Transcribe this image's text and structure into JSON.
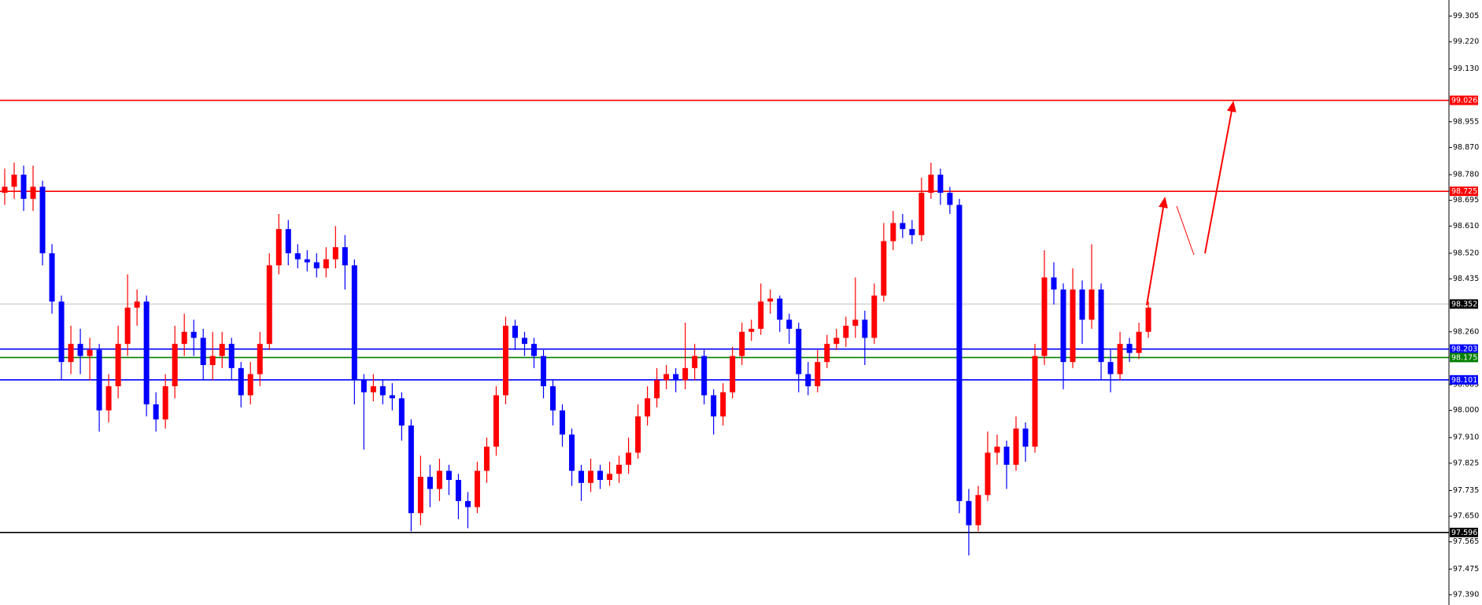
{
  "chart_data": {
    "type": "candlestick",
    "up_color": "#ff0000",
    "down_color": "#0000ff",
    "open": [
      98.72,
      98.74,
      98.78,
      98.7,
      98.74,
      98.52,
      98.36,
      98.16,
      98.22,
      98.18,
      98.2,
      98.0,
      98.08,
      98.22,
      98.34,
      98.36,
      98.02,
      97.97,
      98.08,
      98.22,
      98.26,
      98.24,
      98.15,
      98.18,
      98.22,
      98.14,
      98.05,
      98.12,
      98.22,
      98.48,
      98.6,
      98.52,
      98.5,
      98.49,
      98.47,
      98.5,
      98.54,
      98.48,
      98.1,
      98.06,
      98.08,
      98.05,
      98.04,
      97.95,
      97.66,
      97.78,
      97.74,
      97.8,
      97.77,
      97.7,
      97.68,
      97.8,
      97.88,
      98.05,
      98.28,
      98.24,
      98.22,
      98.18,
      98.08,
      98.0,
      97.92,
      97.8,
      97.76,
      97.8,
      97.77,
      97.79,
      97.82,
      97.86,
      97.98,
      98.04,
      98.1,
      98.12,
      98.1,
      98.14,
      98.18,
      98.05,
      97.98,
      98.06,
      98.18,
      98.26,
      98.27,
      98.36,
      98.37,
      98.3,
      98.27,
      98.12,
      98.08,
      98.16,
      98.22,
      98.24,
      98.28,
      98.3,
      98.24,
      98.38,
      98.56,
      98.62,
      98.6,
      98.58,
      98.72,
      98.78,
      98.72,
      98.68,
      97.7,
      97.62,
      97.72,
      97.86,
      97.88,
      97.82,
      97.94,
      97.88,
      98.18,
      98.44,
      98.4,
      98.16,
      98.4,
      98.3,
      98.4,
      98.16,
      98.12,
      98.22,
      98.19,
      98.26
    ],
    "high": [
      98.8,
      98.82,
      98.81,
      98.81,
      98.76,
      98.55,
      98.38,
      98.28,
      98.27,
      98.24,
      98.22,
      98.12,
      98.28,
      98.45,
      98.4,
      98.38,
      98.06,
      98.12,
      98.28,
      98.32,
      98.3,
      98.27,
      98.26,
      98.26,
      98.24,
      98.16,
      98.16,
      98.26,
      98.52,
      98.65,
      98.63,
      98.55,
      98.53,
      98.52,
      98.54,
      98.61,
      98.58,
      98.5,
      98.12,
      98.12,
      98.1,
      98.09,
      98.06,
      97.97,
      97.85,
      97.82,
      97.84,
      97.82,
      97.79,
      97.73,
      97.83,
      97.91,
      98.08,
      98.31,
      98.3,
      98.26,
      98.24,
      98.2,
      98.1,
      98.02,
      97.94,
      97.82,
      97.84,
      97.82,
      97.83,
      97.85,
      97.91,
      98.02,
      98.08,
      98.14,
      98.15,
      98.14,
      98.29,
      98.22,
      98.2,
      98.07,
      98.09,
      98.21,
      98.29,
      98.3,
      98.42,
      98.4,
      98.38,
      98.32,
      98.29,
      98.16,
      98.2,
      98.25,
      98.27,
      98.31,
      98.44,
      98.33,
      98.42,
      98.62,
      98.66,
      98.65,
      98.63,
      98.77,
      98.82,
      98.8,
      98.74,
      98.7,
      97.74,
      97.75,
      97.93,
      97.92,
      97.9,
      97.98,
      97.96,
      98.22,
      98.53,
      98.49,
      98.42,
      98.47,
      98.43,
      98.55,
      98.42,
      98.2,
      98.26,
      98.24,
      98.29,
      98.36
    ],
    "low": [
      98.68,
      98.7,
      98.66,
      98.66,
      98.48,
      98.32,
      98.1,
      98.12,
      98.12,
      98.1,
      97.93,
      97.96,
      98.04,
      98.18,
      98.28,
      97.98,
      97.93,
      97.94,
      98.04,
      98.18,
      98.18,
      98.1,
      98.1,
      98.14,
      98.1,
      98.01,
      98.02,
      98.08,
      98.2,
      98.45,
      98.48,
      98.47,
      98.46,
      98.44,
      98.44,
      98.47,
      98.4,
      98.02,
      97.87,
      98.03,
      98.02,
      98.0,
      97.9,
      97.6,
      97.62,
      97.68,
      97.7,
      97.72,
      97.64,
      97.61,
      97.66,
      97.76,
      97.85,
      98.02,
      98.2,
      98.18,
      98.14,
      98.04,
      97.95,
      97.88,
      97.75,
      97.7,
      97.73,
      97.74,
      97.75,
      97.76,
      97.79,
      97.84,
      97.95,
      98.01,
      98.07,
      98.06,
      98.07,
      98.1,
      98.02,
      97.92,
      97.95,
      98.04,
      98.15,
      98.23,
      98.25,
      98.32,
      98.26,
      98.22,
      98.06,
      98.05,
      98.06,
      98.14,
      98.2,
      98.21,
      98.24,
      98.15,
      98.22,
      98.36,
      98.53,
      98.57,
      98.55,
      98.56,
      98.7,
      98.68,
      98.65,
      97.66,
      97.52,
      97.6,
      97.7,
      97.82,
      97.74,
      97.8,
      97.83,
      97.86,
      98.15,
      98.35,
      98.07,
      98.14,
      98.22,
      98.27,
      98.1,
      98.06,
      98.1,
      98.16,
      98.17,
      98.24
    ],
    "close": [
      98.74,
      98.78,
      98.7,
      98.74,
      98.52,
      98.36,
      98.16,
      98.22,
      98.18,
      98.2,
      98.0,
      98.08,
      98.22,
      98.34,
      98.36,
      98.02,
      97.97,
      98.08,
      98.22,
      98.26,
      98.24,
      98.15,
      98.18,
      98.22,
      98.14,
      98.05,
      98.12,
      98.22,
      98.48,
      98.6,
      98.52,
      98.5,
      98.49,
      98.47,
      98.5,
      98.54,
      98.48,
      98.1,
      98.06,
      98.08,
      98.05,
      98.04,
      97.95,
      97.66,
      97.78,
      97.74,
      97.8,
      97.77,
      97.7,
      97.68,
      97.8,
      97.88,
      98.05,
      98.28,
      98.24,
      98.22,
      98.18,
      98.08,
      98.0,
      97.92,
      97.8,
      97.76,
      97.8,
      97.77,
      97.79,
      97.82,
      97.86,
      97.98,
      98.04,
      98.1,
      98.12,
      98.1,
      98.14,
      98.18,
      98.05,
      97.98,
      98.06,
      98.18,
      98.26,
      98.27,
      98.36,
      98.37,
      98.3,
      98.27,
      98.12,
      98.08,
      98.16,
      98.22,
      98.24,
      98.28,
      98.3,
      98.24,
      98.38,
      98.56,
      98.62,
      98.6,
      98.58,
      98.72,
      98.78,
      98.72,
      98.68,
      97.7,
      97.62,
      97.72,
      97.86,
      97.88,
      97.82,
      97.94,
      97.88,
      98.18,
      98.44,
      98.4,
      98.16,
      98.4,
      98.3,
      98.4,
      98.16,
      98.12,
      98.22,
      98.19,
      98.26,
      98.34
    ],
    "ylim": [
      97.356,
      99.358
    ],
    "yticks": [
      99.305,
      {
        "value": 99.22,
        "label": "99.220"
      },
      {
        "value": 99.13,
        "label": "99.130"
      },
      98.955,
      {
        "value": 98.87,
        "label": "98.870"
      },
      {
        "value": 98.78,
        "label": "98.780"
      },
      98.695,
      {
        "value": 98.61,
        "label": "98.610"
      },
      {
        "value": 98.52,
        "label": "98.520"
      },
      98.435,
      {
        "value": 98.26,
        "label": "98.260"
      },
      98.085,
      {
        "value": 98.0,
        "label": "98.000"
      },
      {
        "value": 97.91,
        "label": "97.910"
      },
      97.825,
      97.735,
      {
        "value": 97.65,
        "label": "97.650"
      },
      97.565,
      97.475,
      {
        "value": 97.39,
        "label": "97.390"
      }
    ],
    "levels": [
      {
        "value": 99.026,
        "color": "#ff0000",
        "box": "#ff0000"
      },
      {
        "value": 98.725,
        "color": "#ff0000",
        "box": "#ff0000"
      },
      {
        "value": 98.352,
        "color": "#c0c0c0",
        "box": "#000000"
      },
      {
        "value": 98.203,
        "color": "#0000ff",
        "box": "#0000ff"
      },
      {
        "value": 98.175,
        "color": "#008000",
        "box": "#008000"
      },
      {
        "value": 98.101,
        "color": "#0000ff",
        "box": "#0000ff"
      },
      {
        "value": 97.596,
        "color": "#000000",
        "box": "#000000"
      }
    ]
  }
}
